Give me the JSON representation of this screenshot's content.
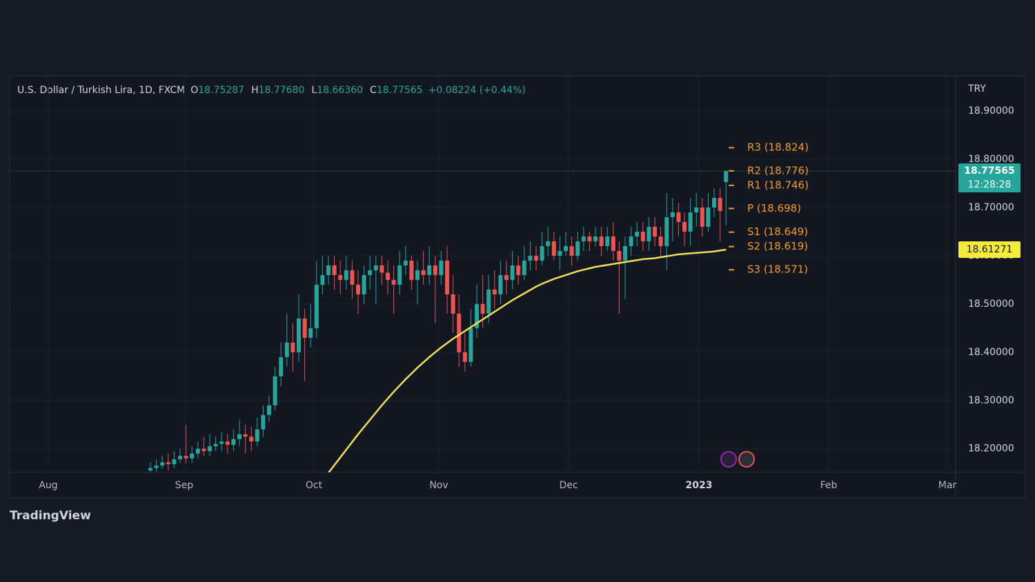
{
  "chart_data": {
    "type": "candlestick",
    "title": "U.S. Dollar / Turkish Lira, 1D, FXCM",
    "ohlc": [
      {
        "key": "O",
        "value": 18.75287,
        "value_label": "18.75287"
      },
      {
        "key": "H",
        "value": 18.7768,
        "value_label": "18.77680"
      },
      {
        "key": "L",
        "value": 18.6636,
        "value_label": "18.66360"
      },
      {
        "key": "C",
        "value": 18.77565,
        "value_label": "18.77565"
      }
    ],
    "change": "+0.08224 (+0.44%)",
    "currency": "TRY",
    "up_color": "#26a69a",
    "down_color": "#ef5350",
    "open": [
      18.155,
      18.16,
      18.165,
      18.172,
      18.168,
      18.178,
      18.185,
      18.18,
      18.19,
      18.2,
      18.195,
      18.205,
      18.21,
      18.215,
      18.208,
      18.22,
      18.23,
      18.225,
      18.215,
      18.24,
      18.27,
      18.29,
      18.35,
      18.39,
      18.42,
      18.4,
      18.47,
      18.43,
      18.45,
      18.54,
      18.56,
      18.58,
      18.56,
      18.55,
      18.57,
      18.54,
      18.52,
      18.56,
      18.57,
      18.58,
      18.565,
      18.55,
      18.54,
      18.58,
      18.59,
      18.55,
      18.57,
      18.56,
      18.58,
      18.56,
      18.59,
      18.52,
      18.48,
      18.4,
      18.38,
      18.45,
      18.5,
      18.48,
      18.53,
      18.52,
      18.56,
      18.55,
      18.58,
      18.56,
      18.59,
      18.6,
      18.59,
      18.62,
      18.63,
      18.6,
      18.61,
      18.62,
      18.6,
      18.63,
      18.64,
      18.63,
      18.64,
      18.62,
      18.64,
      18.61,
      18.59,
      18.62,
      18.64,
      18.65,
      18.63,
      18.66,
      18.64,
      18.62,
      18.68,
      18.69,
      18.67,
      18.65,
      18.69,
      18.7,
      18.66,
      18.7,
      18.72,
      18.75287
    ],
    "high": [
      18.172,
      18.178,
      18.185,
      18.19,
      18.195,
      18.2,
      18.25,
      18.205,
      18.215,
      18.225,
      18.23,
      18.225,
      18.235,
      18.23,
      18.24,
      18.26,
      18.25,
      18.245,
      18.265,
      18.29,
      18.31,
      18.37,
      18.42,
      18.48,
      18.46,
      18.52,
      18.49,
      18.5,
      18.59,
      18.6,
      18.6,
      18.6,
      18.59,
      18.6,
      18.59,
      18.57,
      18.58,
      18.6,
      18.6,
      18.6,
      18.59,
      18.58,
      18.61,
      18.62,
      18.6,
      18.59,
      18.61,
      18.62,
      18.6,
      18.61,
      18.62,
      18.56,
      18.52,
      18.44,
      18.49,
      18.54,
      18.56,
      18.56,
      18.57,
      18.59,
      18.59,
      18.61,
      18.6,
      18.62,
      18.63,
      18.62,
      18.65,
      18.66,
      18.65,
      18.64,
      18.65,
      18.64,
      18.65,
      18.66,
      18.65,
      18.66,
      18.66,
      18.66,
      18.67,
      18.63,
      18.64,
      18.66,
      18.67,
      18.67,
      18.68,
      18.68,
      18.66,
      18.73,
      18.72,
      18.71,
      18.69,
      18.72,
      18.73,
      18.72,
      18.73,
      18.74,
      18.74,
      18.7768
    ],
    "low": [
      18.15,
      18.152,
      18.158,
      18.155,
      18.16,
      18.17,
      18.17,
      18.17,
      18.18,
      18.185,
      18.185,
      18.195,
      18.195,
      18.19,
      18.195,
      18.205,
      18.19,
      18.195,
      18.205,
      18.225,
      18.255,
      18.28,
      18.33,
      18.37,
      18.36,
      18.38,
      18.34,
      18.41,
      18.43,
      18.52,
      18.54,
      18.53,
      18.52,
      18.53,
      18.51,
      18.48,
      18.5,
      18.53,
      18.5,
      18.54,
      18.52,
      18.48,
      18.52,
      18.56,
      18.53,
      18.5,
      18.54,
      18.54,
      18.46,
      18.54,
      18.48,
      18.44,
      18.37,
      18.36,
      18.37,
      18.43,
      18.45,
      18.46,
      18.49,
      18.5,
      18.52,
      18.53,
      18.54,
      18.55,
      18.57,
      18.57,
      18.58,
      18.6,
      18.59,
      18.57,
      18.6,
      18.58,
      18.59,
      18.61,
      18.61,
      18.62,
      18.6,
      18.61,
      18.59,
      18.48,
      18.51,
      18.6,
      18.62,
      18.61,
      18.61,
      18.62,
      18.6,
      18.57,
      18.63,
      18.64,
      18.62,
      18.62,
      18.66,
      18.64,
      18.65,
      18.68,
      18.63,
      18.6636
    ],
    "close": [
      18.16,
      18.165,
      18.172,
      18.168,
      18.178,
      18.185,
      18.18,
      18.19,
      18.2,
      18.195,
      18.205,
      18.21,
      18.215,
      18.208,
      18.22,
      18.23,
      18.225,
      18.215,
      18.24,
      18.27,
      18.29,
      18.35,
      18.39,
      18.42,
      18.4,
      18.47,
      18.43,
      18.45,
      18.54,
      18.56,
      18.58,
      18.56,
      18.55,
      18.57,
      18.54,
      18.52,
      18.56,
      18.57,
      18.58,
      18.565,
      18.55,
      18.54,
      18.58,
      18.59,
      18.55,
      18.57,
      18.56,
      18.58,
      18.56,
      18.59,
      18.52,
      18.48,
      18.4,
      18.38,
      18.45,
      18.5,
      18.48,
      18.53,
      18.52,
      18.56,
      18.55,
      18.58,
      18.56,
      18.59,
      18.6,
      18.59,
      18.62,
      18.63,
      18.6,
      18.61,
      18.62,
      18.6,
      18.63,
      18.64,
      18.63,
      18.64,
      18.62,
      18.64,
      18.61,
      18.59,
      18.62,
      18.64,
      18.65,
      18.63,
      18.66,
      18.64,
      18.62,
      18.68,
      18.69,
      18.67,
      18.65,
      18.69,
      18.7,
      18.66,
      18.7,
      18.72,
      18.693,
      18.77565
    ],
    "ma": {
      "color": "#f0e05a",
      "values": [
        null,
        null,
        null,
        null,
        null,
        null,
        null,
        null,
        null,
        null,
        null,
        null,
        null,
        null,
        null,
        null,
        null,
        null,
        null,
        null,
        null,
        null,
        null,
        null,
        null,
        null,
        null,
        null,
        18.12,
        18.135,
        18.15,
        18.166,
        18.182,
        18.198,
        18.214,
        18.23,
        18.245,
        18.26,
        18.275,
        18.29,
        18.304,
        18.318,
        18.331,
        18.344,
        18.356,
        18.368,
        18.379,
        18.39,
        18.4,
        18.41,
        18.419,
        18.428,
        18.436,
        18.444,
        18.452,
        18.46,
        18.468,
        18.476,
        18.484,
        18.492,
        18.5,
        18.508,
        18.515,
        18.522,
        18.529,
        18.536,
        18.542,
        18.547,
        18.552,
        18.556,
        18.56,
        18.564,
        18.568,
        18.571,
        18.574,
        18.577,
        18.579,
        18.581,
        18.583,
        18.585,
        18.587,
        18.589,
        18.591,
        18.593,
        18.594,
        18.595,
        18.597,
        18.599,
        18.601,
        18.603,
        18.604,
        18.605,
        18.606,
        18.607,
        18.608,
        18.609,
        18.611,
        18.61271
      ]
    },
    "last_price": 18.77565,
    "countdown": "12:28:28",
    "pivot_color": "#f59a23",
    "pivots": [
      {
        "value": 18.824,
        "label": "R3 (18.824)"
      },
      {
        "value": 18.776,
        "label": "R2 (18.776)"
      },
      {
        "value": 18.746,
        "label": "R1 (18.746)"
      },
      {
        "value": 18.698,
        "label": "P (18.698)"
      },
      {
        "value": 18.649,
        "label": "S1 (18.649)"
      },
      {
        "value": 18.619,
        "label": "S2 (18.619)"
      },
      {
        "value": 18.571,
        "label": "S3 (18.571)"
      }
    ],
    "ylim": [
      18.151,
      18.973
    ],
    "yticks": [
      {
        "value": 18.2,
        "label": "18.20000"
      },
      {
        "value": 18.3,
        "label": "18.30000"
      },
      {
        "value": 18.4,
        "label": "18.40000"
      },
      {
        "value": 18.5,
        "label": "18.50000"
      },
      {
        "value": 18.6,
        "label": "18.60000"
      },
      {
        "value": 18.7,
        "label": "18.70000"
      },
      {
        "value": 18.8,
        "label": "18.80000"
      },
      {
        "value": 18.9,
        "label": "18.90000"
      }
    ],
    "x_labels": [
      "Aug",
      "Sep",
      "Oct",
      "Nov",
      "Dec",
      "2023",
      "Feb",
      "Mar"
    ],
    "grid": true,
    "brand": "TradingView"
  }
}
